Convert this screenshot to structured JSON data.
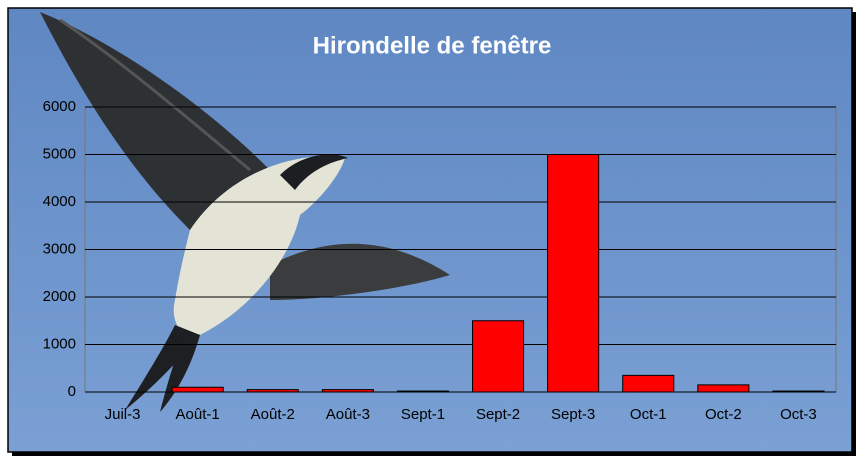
{
  "chart_data": {
    "type": "bar",
    "title": "Hirondelle de fenêtre",
    "categories": [
      "Juil-3",
      "Août-1",
      "Août-2",
      "Août-3",
      "Sept-1",
      "Sept-2",
      "Sept-3",
      "Oct-1",
      "Oct-2",
      "Oct-3"
    ],
    "values": [
      0,
      100,
      50,
      50,
      20,
      1500,
      5000,
      350,
      150,
      20
    ],
    "color": "#ff0000",
    "ylim": [
      0,
      6000
    ],
    "yticks": [
      0,
      1000,
      2000,
      3000,
      4000,
      5000,
      6000
    ],
    "grid": true
  }
}
